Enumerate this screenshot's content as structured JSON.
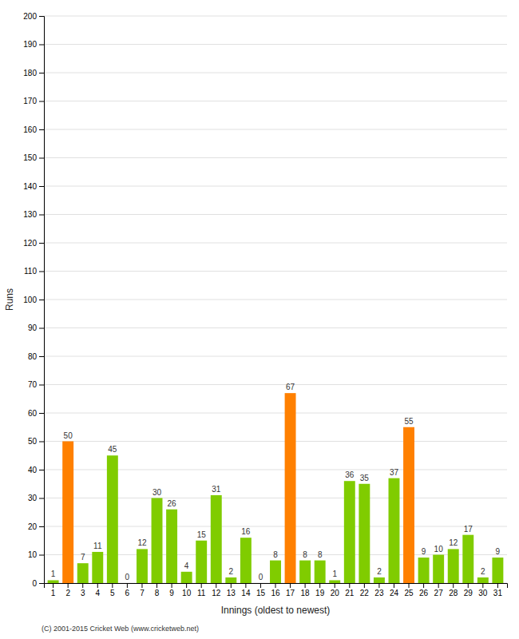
{
  "chart_data": {
    "type": "bar",
    "categories": [
      "1",
      "2",
      "3",
      "4",
      "5",
      "6",
      "7",
      "8",
      "9",
      "10",
      "11",
      "12",
      "13",
      "14",
      "15",
      "16",
      "17",
      "18",
      "19",
      "20",
      "21",
      "22",
      "23",
      "24",
      "25",
      "26",
      "27",
      "28",
      "29",
      "30",
      "31"
    ],
    "values": [
      1,
      50,
      7,
      11,
      45,
      0,
      12,
      30,
      26,
      4,
      15,
      31,
      2,
      16,
      0,
      8,
      67,
      8,
      8,
      1,
      36,
      35,
      2,
      37,
      55,
      9,
      10,
      12,
      17,
      2,
      9
    ],
    "colors": [
      "#80cc00",
      "#ff8000",
      "#80cc00",
      "#80cc00",
      "#80cc00",
      "#80cc00",
      "#80cc00",
      "#80cc00",
      "#80cc00",
      "#80cc00",
      "#80cc00",
      "#80cc00",
      "#80cc00",
      "#80cc00",
      "#80cc00",
      "#80cc00",
      "#ff8000",
      "#80cc00",
      "#80cc00",
      "#80cc00",
      "#80cc00",
      "#80cc00",
      "#80cc00",
      "#80cc00",
      "#ff8000",
      "#80cc00",
      "#80cc00",
      "#80cc00",
      "#80cc00",
      "#80cc00",
      "#80cc00"
    ],
    "xlabel": "Innings (oldest to newest)",
    "ylabel": "Runs",
    "ylim": [
      0,
      200
    ],
    "yticks": [
      0,
      10,
      20,
      30,
      40,
      50,
      60,
      70,
      80,
      90,
      100,
      110,
      120,
      130,
      140,
      150,
      160,
      170,
      180,
      190,
      200
    ],
    "grid": true,
    "data_labels": true,
    "annotations": [
      "(C) 2001-2015 Cricket Web (www.cricketweb.net)"
    ]
  }
}
